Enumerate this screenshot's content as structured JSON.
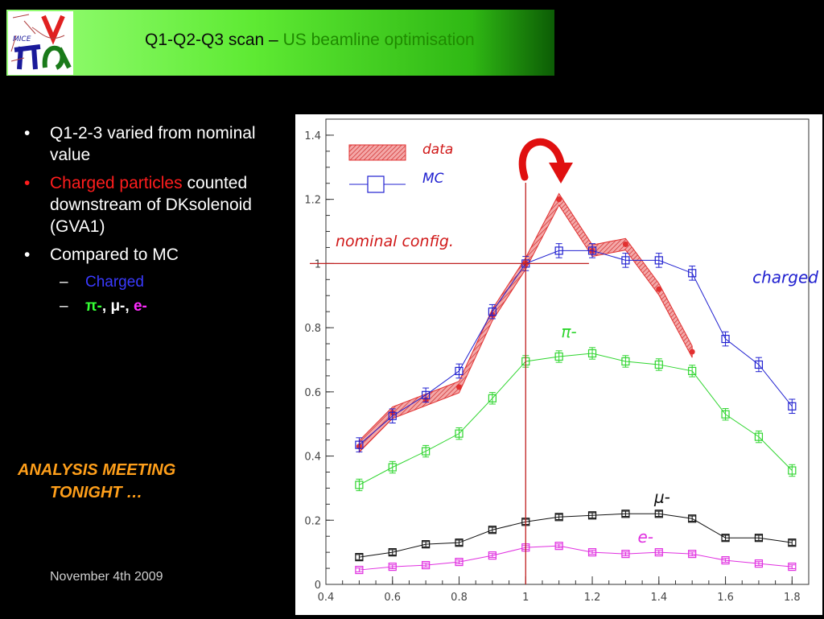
{
  "slide": {
    "title_part1": "Q1-Q2-Q3 scan – ",
    "title_part2": "US beamline optimisation",
    "bullets": [
      {
        "text": "Q1-2-3 varied from nominal value"
      },
      {
        "red": "Charged particles",
        "text": "counted downstream of DKsolenoid (GVA1)"
      },
      {
        "text": "Compared to MC"
      }
    ],
    "sub_bullets": {
      "charged": "Charged",
      "pi": "π-",
      "mu": "μ-",
      "e": "e-",
      "sep": ", "
    },
    "bullet_glyph": "•",
    "dash_glyph": "–",
    "meeting_line1": "ANALYSIS MEETING",
    "meeting_line2": "TONIGHT …",
    "date": "November 4th 2009",
    "logo_text": "MICE",
    "colors": {
      "title_highlight": "#1f8a00",
      "meeting": "#ff9f1a",
      "red": "#ff1d1d"
    }
  },
  "chart_data": {
    "type": "line",
    "xlim": [
      0.4,
      1.85
    ],
    "ylim": [
      0,
      1.45
    ],
    "x_ticks": [
      0.4,
      0.6,
      0.8,
      1,
      1.2,
      1.4,
      1.6,
      1.8
    ],
    "y_ticks": [
      0,
      0.2,
      0.4,
      0.6,
      0.8,
      1,
      1.2,
      1.4
    ],
    "x_tick_labels": [
      "0.4",
      "0.6",
      "0.8",
      "1",
      "1.2",
      "1.4",
      "1.6",
      "1.8"
    ],
    "y_tick_labels": [
      "0",
      "0.2",
      "0.4",
      "0.6",
      "0.8",
      "1",
      "1.2",
      "1.4"
    ],
    "legend": [
      {
        "label": "data",
        "color": "#e23030"
      },
      {
        "label": "MC",
        "color": "#2020d0"
      }
    ],
    "annotation_nominal": "nominal config.",
    "nominal_x": 1,
    "nominal_y": 1,
    "data_band": {
      "x": [
        0.5,
        0.6,
        0.7,
        0.8,
        0.9,
        1.0,
        1.1,
        1.2,
        1.3,
        1.4,
        1.5
      ],
      "y": [
        0.43,
        0.535,
        0.575,
        0.615,
        0.84,
        1.0,
        1.2,
        1.04,
        1.06,
        0.92,
        0.725
      ],
      "half_width": 0.018,
      "color": "#e23030"
    },
    "series": [
      {
        "name": "charged",
        "color": "#2020d0",
        "x": [
          0.5,
          0.6,
          0.7,
          0.8,
          0.9,
          1.0,
          1.1,
          1.2,
          1.3,
          1.4,
          1.5,
          1.6,
          1.7,
          1.8
        ],
        "y": [
          0.435,
          0.525,
          0.59,
          0.665,
          0.85,
          1.0,
          1.04,
          1.04,
          1.01,
          1.01,
          0.97,
          0.765,
          0.685,
          0.555
        ],
        "err": 0.022,
        "label_x": 1.78,
        "label_y": 0.94
      },
      {
        "name": "π-",
        "color": "#2ed52e",
        "x": [
          0.5,
          0.6,
          0.7,
          0.8,
          0.9,
          1.0,
          1.1,
          1.2,
          1.3,
          1.4,
          1.5,
          1.6,
          1.7,
          1.8
        ],
        "y": [
          0.31,
          0.365,
          0.415,
          0.47,
          0.58,
          0.695,
          0.71,
          0.72,
          0.695,
          0.685,
          0.665,
          0.53,
          0.46,
          0.355
        ],
        "err": 0.018,
        "label_x": 1.13,
        "label_y": 0.77
      },
      {
        "name": "μ-",
        "color": "#101010",
        "x": [
          0.5,
          0.6,
          0.7,
          0.8,
          0.9,
          1.0,
          1.1,
          1.2,
          1.3,
          1.4,
          1.5,
          1.6,
          1.7,
          1.8
        ],
        "y": [
          0.085,
          0.1,
          0.125,
          0.13,
          0.17,
          0.195,
          0.21,
          0.215,
          0.22,
          0.22,
          0.205,
          0.145,
          0.145,
          0.13
        ],
        "err": 0.008,
        "label_x": 1.41,
        "label_y": 0.255
      },
      {
        "name": "e-",
        "color": "#e030e0",
        "x": [
          0.5,
          0.6,
          0.7,
          0.8,
          0.9,
          1.0,
          1.1,
          1.2,
          1.3,
          1.4,
          1.5,
          1.6,
          1.7,
          1.8
        ],
        "y": [
          0.045,
          0.055,
          0.06,
          0.07,
          0.09,
          0.115,
          0.12,
          0.1,
          0.095,
          0.1,
          0.095,
          0.075,
          0.065,
          0.055
        ],
        "err": 0.006,
        "label_x": 1.36,
        "label_y": 0.13
      }
    ]
  }
}
